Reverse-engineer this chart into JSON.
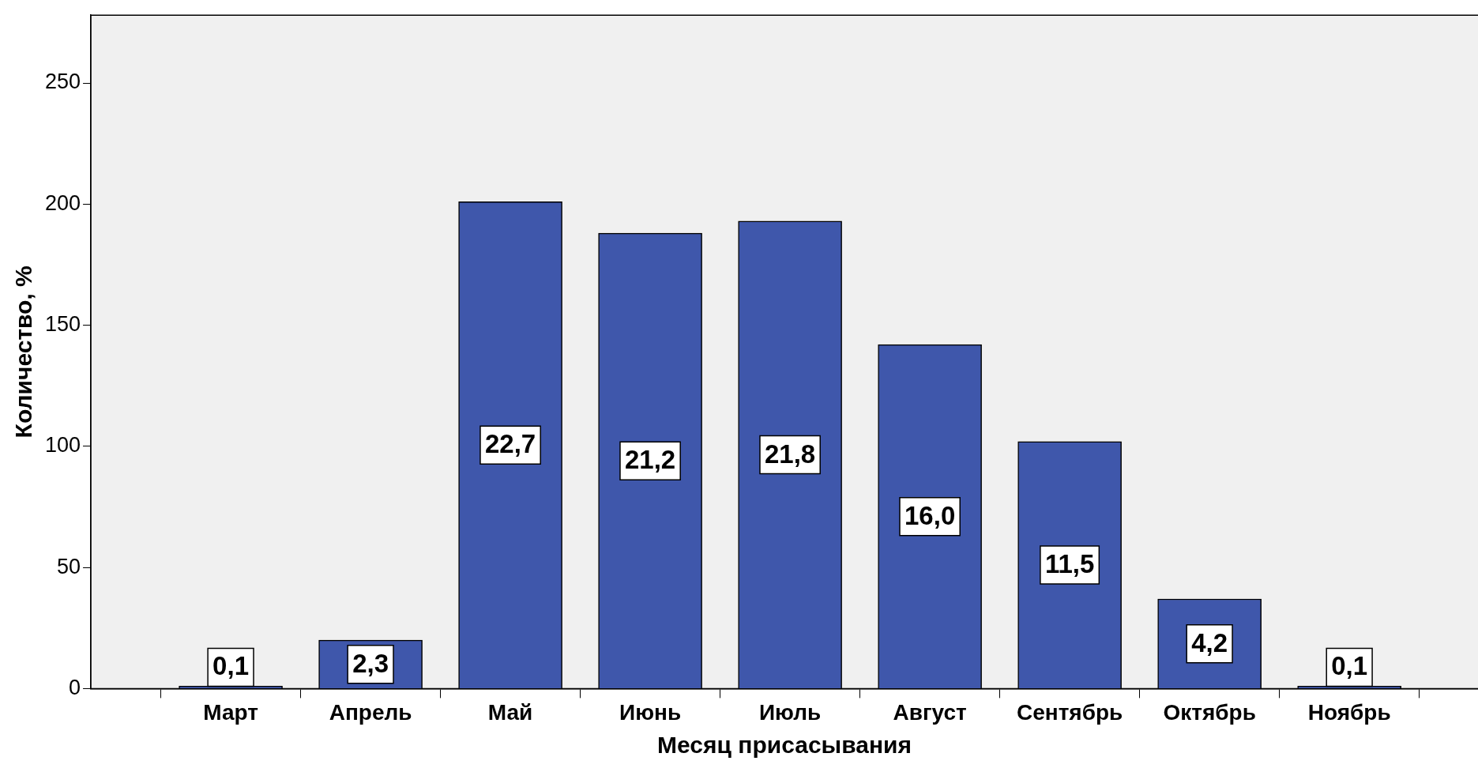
{
  "chart_data": {
    "type": "bar",
    "xlabel": "Месяц присасывания",
    "ylabel": "Количество, %",
    "categories": [
      "Март",
      "Апрель",
      "Май",
      "Июнь",
      "Июль",
      "Август",
      "Сентябрь",
      "Октябрь",
      "Ноябрь"
    ],
    "values": [
      1,
      20,
      201,
      188,
      193,
      142,
      102,
      37,
      1
    ],
    "annotations": [
      "0,1",
      "2,3",
      "22,7",
      "21,2",
      "21,8",
      "16,0",
      "11,5",
      "4,2",
      "0,1"
    ],
    "color": "#3f57ab",
    "ylim": [
      0,
      278
    ],
    "yticks": [
      0,
      50,
      100,
      150,
      200,
      250
    ],
    "legend": false
  }
}
